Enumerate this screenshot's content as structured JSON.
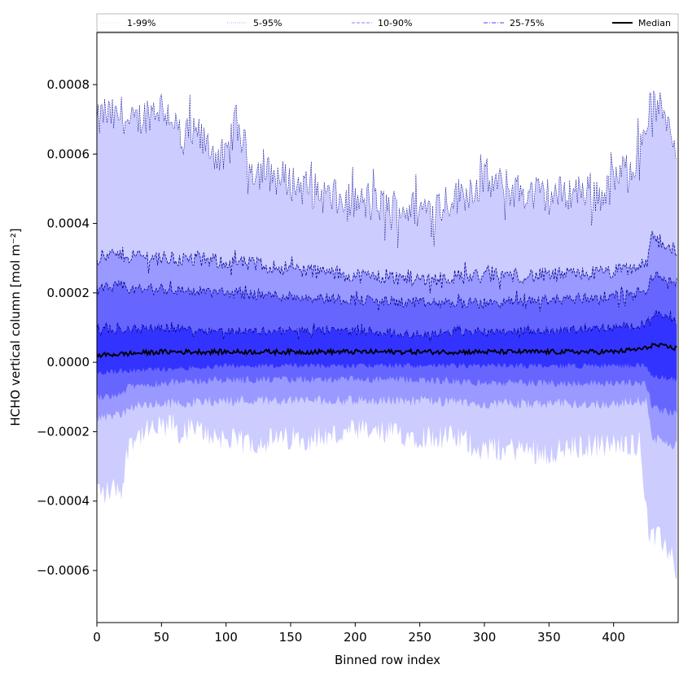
{
  "chart_data": {
    "type": "area",
    "xlabel": "Binned row index",
    "ylabel": "HCHO vertical column [mol m⁻²]",
    "xlim": [
      0,
      450
    ],
    "ylim": [
      -0.00075,
      0.00095
    ],
    "x_ticks": [
      0,
      50,
      100,
      150,
      200,
      250,
      300,
      350,
      400
    ],
    "x_tick_labels": [
      "0",
      "50",
      "100",
      "150",
      "200",
      "250",
      "300",
      "350",
      "400"
    ],
    "y_ticks": [
      -0.0006,
      -0.0004,
      -0.0002,
      0.0,
      0.0002,
      0.0004,
      0.0006,
      0.0008
    ],
    "y_tick_labels": [
      "−0.0006",
      "−0.0004",
      "−0.0002",
      "0.0000",
      "0.0002",
      "0.0004",
      "0.0006",
      "0.0008"
    ],
    "grid": false,
    "legend_position": "top, spanning full width",
    "legend": [
      {
        "label": "1-99%",
        "color": "#dcdcf0",
        "style": "dotted"
      },
      {
        "label": "5-95%",
        "color": "#aaaaff",
        "style": "dotted"
      },
      {
        "label": "10-90%",
        "color": "#8080ff",
        "style": "dashed"
      },
      {
        "label": "25-75%",
        "color": "#4040ff",
        "style": "dashdot"
      },
      {
        "label": "Median",
        "color": "#000000",
        "style": "solid"
      }
    ],
    "bands": [
      {
        "name": "1-99%",
        "fill": "#ccccff",
        "line_color": "#00008b",
        "x": [
          0,
          5,
          15,
          20,
          25,
          40,
          50,
          60,
          66,
          70,
          80,
          100,
          107,
          120,
          150,
          190,
          200,
          250,
          280,
          300,
          330,
          350,
          380,
          390,
          400,
          420,
          428,
          440,
          449
        ],
        "upper": [
          0.00068,
          0.00072,
          0.0007,
          0.00072,
          0.00068,
          0.00072,
          0.00074,
          0.0007,
          0.0006,
          0.00066,
          0.00064,
          0.00058,
          0.0007,
          0.00056,
          0.00052,
          0.00046,
          0.00046,
          0.00044,
          0.00048,
          0.00052,
          0.00049,
          0.00048,
          0.0005,
          0.00048,
          0.00052,
          0.0006,
          0.00074,
          0.00072,
          0.00062
        ],
        "lower": [
          -0.00036,
          -0.00038,
          -0.00036,
          -0.00036,
          -0.00022,
          -0.0002,
          -0.00019,
          -0.00018,
          -0.00022,
          -0.00019,
          -0.0002,
          -0.00022,
          -0.00023,
          -0.00023,
          -0.00022,
          -0.00021,
          -0.0002,
          -0.00021,
          -0.00022,
          -0.00025,
          -0.00025,
          -0.00026,
          -0.00024,
          -0.00024,
          -0.00024,
          -0.00023,
          -0.0005,
          -0.00052,
          -0.0006
        ]
      },
      {
        "name": "5-95%",
        "fill": "#9999ff",
        "line_color": "#00008b",
        "x": [
          0,
          20,
          25,
          50,
          100,
          150,
          200,
          250,
          300,
          350,
          400,
          425,
          430,
          449
        ],
        "upper": [
          0.0003,
          0.00031,
          0.00031,
          0.0003,
          0.00029,
          0.00027,
          0.00025,
          0.00024,
          0.00025,
          0.00025,
          0.00026,
          0.00028,
          0.00036,
          0.00032
        ],
        "lower": [
          -0.00016,
          -0.00015,
          -0.00013,
          -0.00012,
          -0.00011,
          -0.00011,
          -0.00011,
          -0.00011,
          -0.00012,
          -0.00012,
          -0.00012,
          -0.00011,
          -0.00022,
          -0.00024
        ]
      },
      {
        "name": "10-90%",
        "fill": "#6666ff",
        "line_color": "#00008b",
        "x": [
          0,
          20,
          25,
          50,
          100,
          150,
          200,
          250,
          300,
          350,
          400,
          425,
          430,
          449
        ],
        "upper": [
          0.00021,
          0.00022,
          0.00021,
          0.00021,
          0.0002,
          0.00019,
          0.00018,
          0.00017,
          0.00017,
          0.00018,
          0.00019,
          0.0002,
          0.00025,
          0.00023
        ],
        "lower": [
          -0.0001,
          -9e-05,
          -7e-05,
          -6e-05,
          -5e-05,
          -5e-05,
          -5e-05,
          -5e-05,
          -6e-05,
          -6e-05,
          -6e-05,
          -6e-05,
          -0.00013,
          -0.00015
        ]
      },
      {
        "name": "25-75%",
        "fill": "#3333ff",
        "line_color": "#00008b",
        "x": [
          0,
          50,
          100,
          150,
          200,
          250,
          300,
          350,
          400,
          425,
          430,
          449
        ],
        "upper": [
          9e-05,
          0.0001,
          9e-05,
          9e-05,
          9e-05,
          8e-05,
          9e-05,
          9e-05,
          0.0001,
          0.00011,
          0.00014,
          0.00012
        ],
        "lower": [
          -3e-05,
          -2e-05,
          -1e-05,
          -1e-05,
          -1e-05,
          -1e-05,
          -1e-05,
          -1e-05,
          -1e-05,
          -1e-05,
          -4e-05,
          -5e-05
        ]
      }
    ],
    "series": [
      {
        "name": "Median",
        "color": "#000000",
        "x": [
          0,
          50,
          100,
          150,
          200,
          250,
          300,
          350,
          400,
          425,
          430,
          449
        ],
        "values": [
          2e-05,
          3e-05,
          3e-05,
          3e-05,
          3e-05,
          3e-05,
          3e-05,
          3e-05,
          3e-05,
          4e-05,
          5e-05,
          4e-05
        ]
      }
    ]
  }
}
